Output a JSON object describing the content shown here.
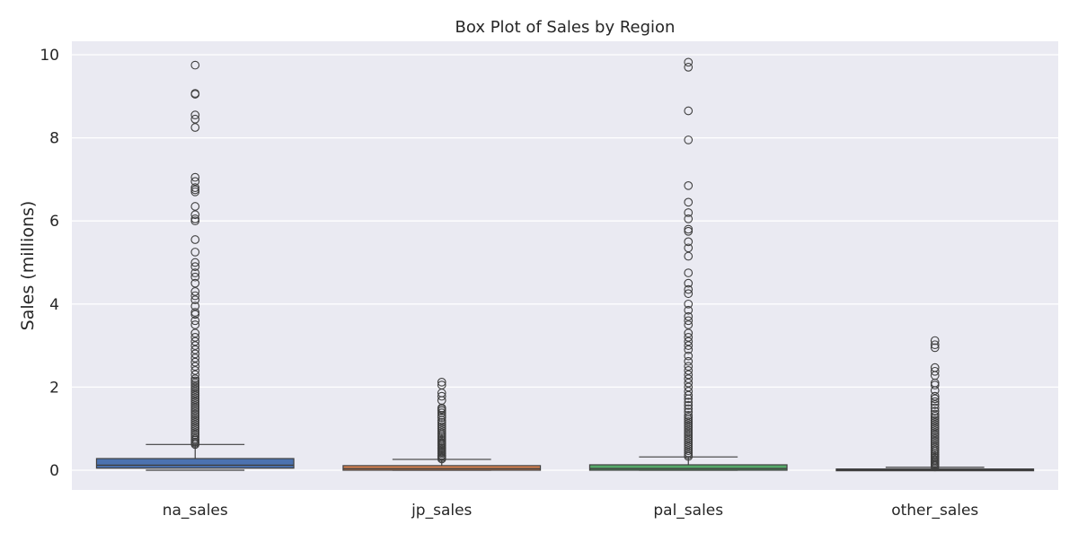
{
  "chart_data": {
    "type": "box",
    "title": "Box Plot of Sales by Region",
    "xlabel": "",
    "ylabel": "Sales (millions)",
    "ylim": [
      -0.48,
      10.35
    ],
    "yticks": [
      0,
      2,
      4,
      6,
      8,
      10
    ],
    "grid": true,
    "legend": "none",
    "categories": [
      "na_sales",
      "jp_sales",
      "pal_sales",
      "other_sales"
    ],
    "colors": [
      "#4c72b0",
      "#dd8452",
      "#55a868",
      "#c44e52"
    ],
    "background": "#eaeaf2",
    "series": [
      {
        "min": 0,
        "q1": 0.05,
        "median": 0.12,
        "q3": 0.28,
        "whisker_high": 0.62,
        "outliers": [
          0.62,
          0.65,
          0.68,
          0.72,
          0.75,
          0.8,
          0.85,
          0.9,
          0.95,
          1.0,
          1.05,
          1.1,
          1.15,
          1.2,
          1.25,
          1.3,
          1.35,
          1.4,
          1.45,
          1.5,
          1.55,
          1.6,
          1.65,
          1.7,
          1.75,
          1.8,
          1.85,
          1.9,
          1.95,
          2.0,
          2.05,
          2.1,
          2.15,
          2.2,
          2.3,
          2.4,
          2.5,
          2.6,
          2.7,
          2.8,
          2.9,
          3.0,
          3.1,
          3.2,
          3.3,
          3.5,
          3.6,
          3.75,
          3.8,
          3.95,
          4.1,
          4.2,
          4.3,
          4.5,
          4.65,
          4.75,
          4.9,
          5.0,
          5.25,
          5.55,
          6.0,
          6.05,
          6.15,
          6.35,
          6.7,
          6.75,
          6.8,
          6.95,
          7.05,
          8.25,
          8.45,
          8.55,
          9.05,
          9.07,
          9.75
        ]
      },
      {
        "min": 0,
        "q1": 0.0,
        "median": 0.04,
        "q3": 0.11,
        "whisker_high": 0.26,
        "outliers": [
          0.27,
          0.3,
          0.33,
          0.36,
          0.4,
          0.43,
          0.46,
          0.5,
          0.53,
          0.56,
          0.6,
          0.63,
          0.66,
          0.7,
          0.74,
          0.78,
          0.82,
          0.86,
          0.9,
          0.95,
          1.0,
          1.05,
          1.1,
          1.15,
          1.2,
          1.27,
          1.32,
          1.38,
          1.43,
          1.47,
          1.5,
          1.68,
          1.78,
          1.86,
          2.05,
          2.12
        ]
      },
      {
        "min": 0,
        "q1": 0.0,
        "median": 0.04,
        "q3": 0.13,
        "whisker_high": 0.32,
        "outliers": [
          0.33,
          0.37,
          0.42,
          0.47,
          0.52,
          0.57,
          0.62,
          0.67,
          0.72,
          0.77,
          0.82,
          0.87,
          0.92,
          0.97,
          1.02,
          1.07,
          1.12,
          1.17,
          1.22,
          1.27,
          1.32,
          1.4,
          1.48,
          1.56,
          1.64,
          1.72,
          1.8,
          1.9,
          2.0,
          2.1,
          2.2,
          2.3,
          2.4,
          2.5,
          2.62,
          2.75,
          2.9,
          3.0,
          3.1,
          3.2,
          3.3,
          3.5,
          3.6,
          3.7,
          3.85,
          4.0,
          4.25,
          4.35,
          4.5,
          4.75,
          5.15,
          5.35,
          5.5,
          5.75,
          5.8,
          6.05,
          6.2,
          6.45,
          6.85,
          7.95,
          8.65,
          9.7,
          9.82
        ]
      },
      {
        "min": 0,
        "q1": 0.0,
        "median": 0.01,
        "q3": 0.03,
        "whisker_high": 0.07,
        "outliers": [
          0.08,
          0.11,
          0.14,
          0.17,
          0.2,
          0.23,
          0.26,
          0.3,
          0.34,
          0.38,
          0.42,
          0.46,
          0.5,
          0.55,
          0.6,
          0.65,
          0.7,
          0.75,
          0.8,
          0.85,
          0.9,
          0.95,
          1.0,
          1.05,
          1.1,
          1.15,
          1.2,
          1.25,
          1.3,
          1.35,
          1.42,
          1.5,
          1.58,
          1.65,
          1.72,
          1.78,
          1.92,
          2.05,
          2.1,
          2.28,
          2.38,
          2.47,
          2.95,
          3.02,
          3.12
        ]
      }
    ]
  }
}
